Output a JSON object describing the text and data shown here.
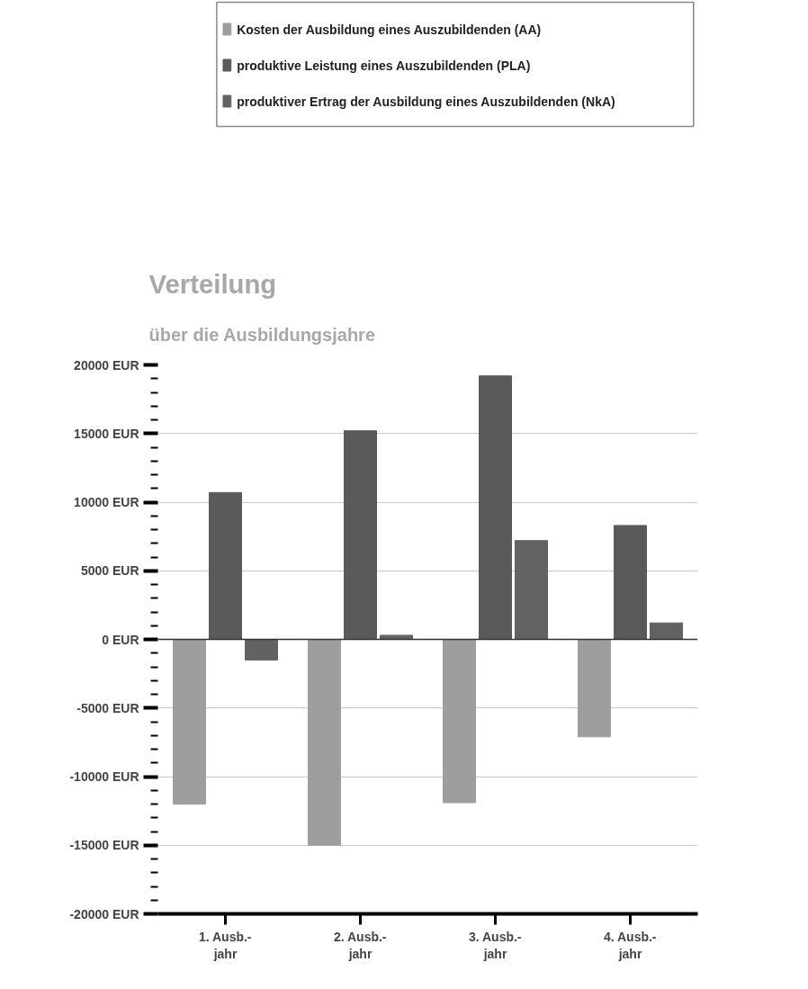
{
  "chart_data": {
    "type": "bar",
    "title": "Verteilung",
    "subtitle": "über die Ausbildungsjahre",
    "categories": [
      "1. Ausb.-\njahr",
      "2. Ausb.-\njahr",
      "3. Ausb.-\njahr",
      "4. Ausb.-\njahr"
    ],
    "series": [
      {
        "name": "Kosten der Ausbildung eines Auszubildenden (AA)",
        "color": "#9e9e9e",
        "values": [
          -12000,
          -15000,
          -11900,
          -7100
        ]
      },
      {
        "name": "produktive Leistung eines Auszubildenden (PLA)",
        "color": "#5a5a5a",
        "values": [
          10700,
          15200,
          19200,
          8300
        ]
      },
      {
        "name": "produktiver Ertrag der Ausbildung eines Auszubildenden (NkA)",
        "color": "#626262",
        "values": [
          -1500,
          300,
          7200,
          1200
        ]
      }
    ],
    "ylim": [
      -20000,
      20000
    ],
    "yticks": [
      {
        "value": -20000,
        "label": "-20000 EUR"
      },
      {
        "value": -15000,
        "label": "-15000 EUR"
      },
      {
        "value": -10000,
        "label": "-10000 EUR"
      },
      {
        "value": -5000,
        "label": "-5000 EUR"
      },
      {
        "value": 0,
        "label": "0 EUR"
      },
      {
        "value": 5000,
        "label": "5000 EUR"
      },
      {
        "value": 10000,
        "label": "10000 EUR"
      },
      {
        "value": 15000,
        "label": "15000 EUR"
      },
      {
        "value": 20000,
        "label": "20000 EUR"
      }
    ],
    "grid": "y",
    "legend": "top"
  }
}
